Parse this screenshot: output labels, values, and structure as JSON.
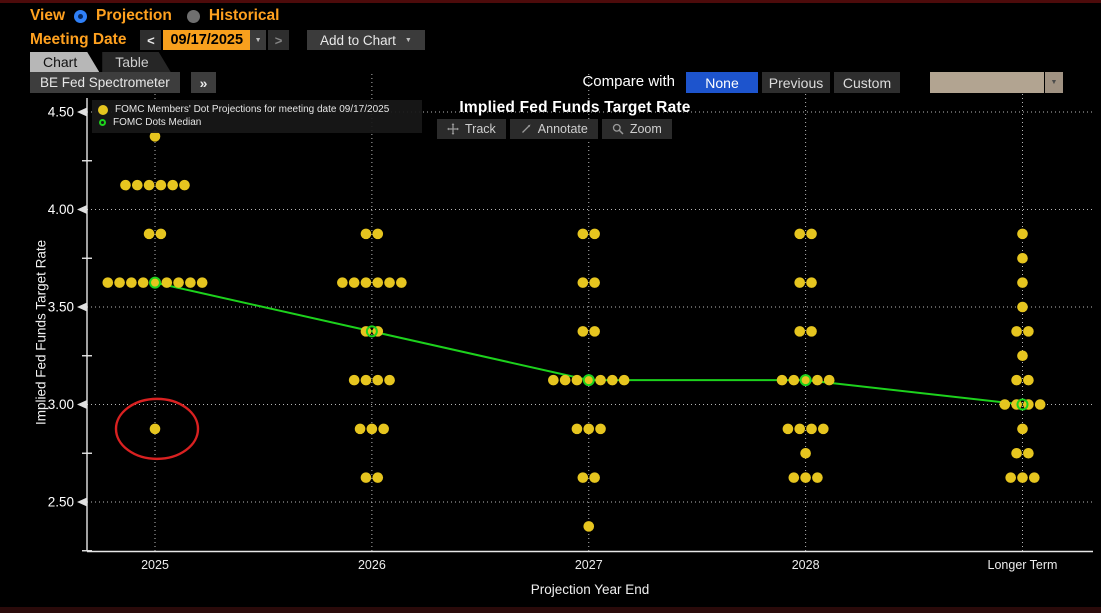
{
  "header": {
    "view_label": "View",
    "view_options": [
      {
        "label": "Projection",
        "selected": true
      },
      {
        "label": "Historical",
        "selected": false
      }
    ],
    "meeting_date_label": "Meeting Date",
    "meeting_date_value": "09/17/2025",
    "prev_date_icon": "<",
    "next_date_icon": ">",
    "date_caret_icon": "▼",
    "add_to_chart_label": "Add to Chart",
    "add_caret_icon": "▼"
  },
  "tabs": [
    {
      "label": "Chart",
      "active": true
    },
    {
      "label": "Table",
      "active": false
    }
  ],
  "toolbar": {
    "spectrometer_label": "BE Fed Spectrometer",
    "expand_icon": "»",
    "compare_label": "Compare with",
    "compare_options": [
      {
        "label": "None",
        "selected": true
      },
      {
        "label": "Previous",
        "selected": false
      },
      {
        "label": "Custom",
        "selected": false
      }
    ],
    "compare_dropdown_value": "",
    "dropdown_caret_icon": "▼"
  },
  "chart": {
    "title": "Implied Fed Funds Target Rate",
    "legend": [
      {
        "marker": "dot",
        "label": "FOMC Members' Dot Projections for meeting date 09/17/2025"
      },
      {
        "marker": "ring",
        "label": "FOMC Dots Median"
      }
    ],
    "tools": [
      {
        "label": "Track"
      },
      {
        "label": "Annotate"
      },
      {
        "label": "Zoom"
      }
    ]
  },
  "chart_data": {
    "type": "scatter",
    "title": "Implied Fed Funds Target Rate",
    "xlabel": "Projection Year End",
    "ylabel": "Implied Fed Funds Target Rate",
    "ylim": [
      2.25,
      4.5
    ],
    "grid": true,
    "yticks": [
      {
        "value": 4.5,
        "label": "4.50"
      },
      {
        "value": 4.0,
        "label": "4.00"
      },
      {
        "value": 3.5,
        "label": "3.50"
      },
      {
        "value": 3.0,
        "label": "3.00"
      },
      {
        "value": 2.5,
        "label": "2.50"
      }
    ],
    "yticks_minor": [
      4.25,
      3.75,
      3.25,
      2.75,
      2.25
    ],
    "columns": [
      {
        "label": "2025",
        "dots": [
          {
            "rate": 4.375,
            "count": 1
          },
          {
            "rate": 4.125,
            "count": 6
          },
          {
            "rate": 3.875,
            "count": 2
          },
          {
            "rate": 3.625,
            "count": 9
          },
          {
            "rate": 2.875,
            "count": 1
          }
        ],
        "median": 3.625
      },
      {
        "label": "2026",
        "dots": [
          {
            "rate": 3.875,
            "count": 2
          },
          {
            "rate": 3.625,
            "count": 6
          },
          {
            "rate": 3.375,
            "count": 2
          },
          {
            "rate": 3.125,
            "count": 4
          },
          {
            "rate": 2.875,
            "count": 3
          },
          {
            "rate": 2.625,
            "count": 2
          }
        ],
        "median": 3.375
      },
      {
        "label": "2027",
        "dots": [
          {
            "rate": 3.875,
            "count": 2
          },
          {
            "rate": 3.625,
            "count": 2
          },
          {
            "rate": 3.375,
            "count": 2
          },
          {
            "rate": 3.125,
            "count": 7
          },
          {
            "rate": 2.875,
            "count": 3
          },
          {
            "rate": 2.625,
            "count": 2
          },
          {
            "rate": 2.375,
            "count": 1
          }
        ],
        "median": 3.125
      },
      {
        "label": "2028",
        "dots": [
          {
            "rate": 3.875,
            "count": 2
          },
          {
            "rate": 3.625,
            "count": 2
          },
          {
            "rate": 3.375,
            "count": 2
          },
          {
            "rate": 3.125,
            "count": 5
          },
          {
            "rate": 2.875,
            "count": 4
          },
          {
            "rate": 2.75,
            "count": 1
          },
          {
            "rate": 2.625,
            "count": 3
          }
        ],
        "median": 3.125
      },
      {
        "label": "Longer Term",
        "dots": [
          {
            "rate": 3.875,
            "count": 1
          },
          {
            "rate": 3.75,
            "count": 1
          },
          {
            "rate": 3.625,
            "count": 1
          },
          {
            "rate": 3.5,
            "count": 1
          },
          {
            "rate": 3.375,
            "count": 2
          },
          {
            "rate": 3.25,
            "count": 1
          },
          {
            "rate": 3.125,
            "count": 2
          },
          {
            "rate": 3.0,
            "count": 4
          },
          {
            "rate": 2.875,
            "count": 1
          },
          {
            "rate": 2.75,
            "count": 2
          },
          {
            "rate": 2.625,
            "count": 3
          }
        ],
        "median": 3.0
      }
    ],
    "median_series": {
      "name": "FOMC Dots Median",
      "values": [
        3.625,
        3.375,
        3.125,
        3.125,
        3.0
      ]
    },
    "annotation": {
      "shape": "ellipse",
      "category": "2025",
      "rate": 2.875
    },
    "legend_position": "top-left"
  },
  "colors": {
    "dot": "#e6c51f",
    "median": "#1dd21d",
    "annotation": "#d92121",
    "amber": "#ffa11f",
    "date_bg": "#f8a01d",
    "selected_blue": "#1d54cd",
    "radio_blue": "#2f80f8",
    "select_tan": "#b2a491",
    "grid": "#d8d8d8",
    "background": "#000000"
  }
}
